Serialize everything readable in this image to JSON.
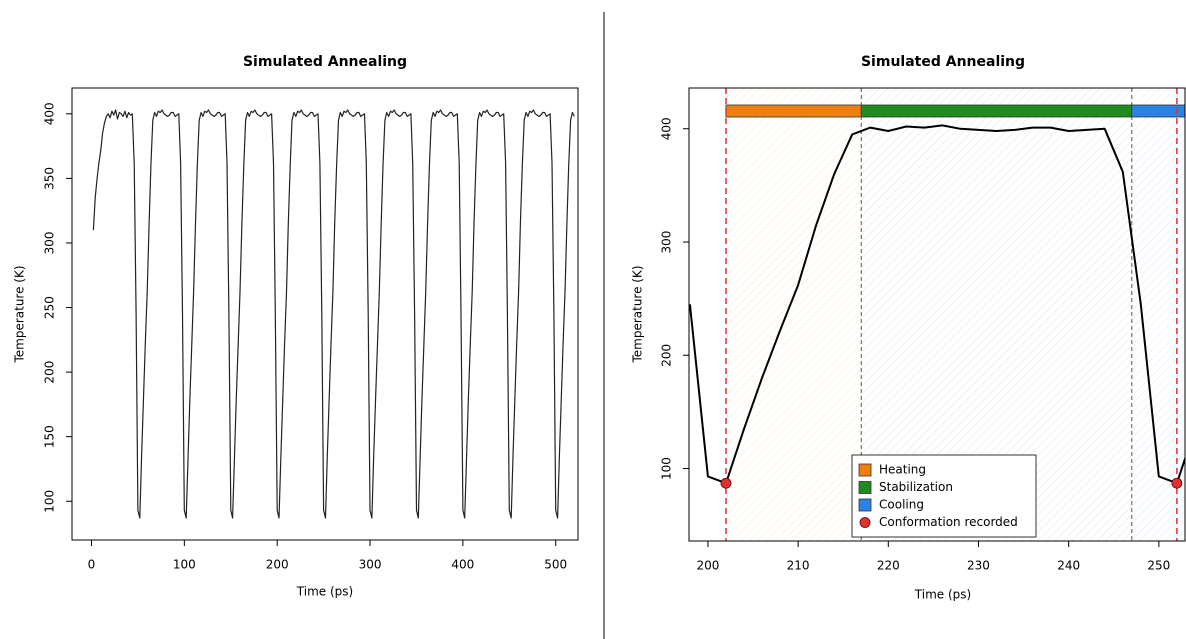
{
  "chart_data": [
    {
      "type": "line",
      "title": "Simulated Annealing",
      "xlabel": "Time (ps)",
      "ylabel": "Temperature (K)",
      "color": "#222222",
      "x": [
        2,
        4,
        6,
        8,
        10,
        12,
        14,
        16,
        18,
        20,
        22,
        24,
        26,
        28,
        30,
        32,
        34,
        36,
        38,
        40,
        42,
        44,
        46,
        48,
        50,
        52,
        54,
        56,
        58,
        60,
        62,
        64,
        66,
        68,
        70,
        72,
        74,
        76,
        78,
        80,
        82,
        84,
        86,
        88,
        90,
        92,
        94,
        96,
        98,
        100,
        102,
        104,
        106,
        108,
        110,
        112,
        114,
        116,
        118,
        120,
        122,
        124,
        126,
        128,
        130,
        132,
        134,
        136,
        138,
        140,
        142,
        144,
        146,
        148,
        150,
        152,
        154,
        156,
        158,
        160,
        162,
        164,
        166,
        168,
        170,
        172,
        174,
        176,
        178,
        180,
        182,
        184,
        186,
        188,
        190,
        192,
        194,
        196,
        198,
        200,
        202,
        204,
        206,
        208,
        210,
        212,
        214,
        216,
        218,
        220,
        222,
        224,
        226,
        228,
        230,
        232,
        234,
        236,
        238,
        240,
        242,
        244,
        246,
        248,
        250,
        252,
        254,
        256,
        258,
        260,
        262,
        264,
        266,
        268,
        270,
        272,
        274,
        276,
        278,
        280,
        282,
        284,
        286,
        288,
        290,
        292,
        294,
        296,
        298,
        300,
        302,
        304,
        306,
        308,
        310,
        312,
        314,
        316,
        318,
        320,
        322,
        324,
        326,
        328,
        330,
        332,
        334,
        336,
        338,
        340,
        342,
        344,
        346,
        348,
        350,
        352,
        354,
        356,
        358,
        360,
        362,
        364,
        366,
        368,
        370,
        372,
        374,
        376,
        378,
        380,
        382,
        384,
        386,
        388,
        390,
        392,
        394,
        396,
        398,
        400,
        402,
        404,
        406,
        408,
        410,
        412,
        414,
        416,
        418,
        420,
        422,
        424,
        426,
        428,
        430,
        432,
        434,
        436,
        438,
        440,
        442,
        444,
        446,
        448,
        450,
        452,
        454,
        456,
        458,
        460,
        462,
        464,
        466,
        468,
        470,
        472,
        474,
        476,
        478,
        480,
        482,
        484,
        486,
        488,
        490,
        492,
        494,
        496,
        498,
        500,
        502,
        504,
        506,
        508,
        510,
        512,
        514,
        516,
        518,
        520
      ],
      "values": [
        310,
        335,
        350,
        362,
        372,
        385,
        393,
        398,
        400,
        397,
        402,
        399,
        403,
        396,
        401,
        400,
        398,
        402,
        397,
        401,
        399,
        400,
        362,
        245,
        93,
        87,
        135,
        180,
        222,
        262,
        315,
        360,
        395,
        401,
        398,
        402,
        401,
        403,
        400,
        399,
        398,
        399,
        401,
        401,
        398,
        399,
        400,
        362,
        245,
        93,
        87,
        135,
        180,
        222,
        262,
        315,
        360,
        395,
        401,
        398,
        402,
        401,
        403,
        400,
        399,
        398,
        399,
        401,
        401,
        398,
        399,
        400,
        362,
        245,
        93,
        87,
        135,
        180,
        222,
        262,
        315,
        360,
        395,
        401,
        398,
        402,
        401,
        403,
        400,
        399,
        398,
        399,
        401,
        401,
        398,
        399,
        400,
        362,
        245,
        93,
        87,
        135,
        180,
        222,
        262,
        315,
        360,
        395,
        401,
        398,
        402,
        401,
        403,
        400,
        399,
        398,
        399,
        401,
        401,
        398,
        399,
        400,
        362,
        245,
        93,
        87,
        135,
        180,
        222,
        262,
        315,
        360,
        395,
        401,
        398,
        402,
        401,
        403,
        400,
        399,
        398,
        399,
        401,
        401,
        398,
        399,
        400,
        362,
        245,
        93,
        87,
        135,
        180,
        222,
        262,
        315,
        360,
        395,
        401,
        398,
        402,
        401,
        403,
        400,
        399,
        398,
        399,
        401,
        401,
        398,
        399,
        400,
        362,
        245,
        93,
        87,
        135,
        180,
        222,
        262,
        315,
        360,
        395,
        401,
        398,
        402,
        401,
        403,
        400,
        399,
        398,
        399,
        401,
        401,
        398,
        399,
        400,
        362,
        245,
        93,
        87,
        135,
        180,
        222,
        262,
        315,
        360,
        395,
        401,
        398,
        402,
        401,
        403,
        400,
        399,
        398,
        399,
        401,
        401,
        398,
        399,
        400,
        362,
        245,
        93,
        87,
        135,
        180,
        222,
        262,
        315,
        360,
        395,
        401,
        398,
        402,
        401,
        403,
        400,
        399,
        398,
        399,
        401,
        401,
        398,
        399,
        400,
        362,
        245,
        93,
        87,
        135,
        180,
        222,
        262,
        315,
        360,
        395,
        401,
        398
      ],
      "xlim": [
        -21,
        524
      ],
      "ylim": [
        70,
        420
      ],
      "xticks": [
        0,
        100,
        200,
        300,
        400,
        500
      ],
      "yticks": [
        100,
        150,
        200,
        250,
        300,
        350,
        400
      ]
    },
    {
      "type": "line",
      "title": "Simulated Annealing",
      "xlabel": "Time (ps)",
      "ylabel": "Temperature (K)",
      "color": "#000000",
      "x": [
        198,
        200,
        202,
        204,
        206,
        208,
        210,
        212,
        214,
        216,
        218,
        220,
        222,
        224,
        226,
        228,
        230,
        232,
        234,
        236,
        238,
        240,
        242,
        244,
        246,
        248,
        250,
        252,
        254
      ],
      "values": [
        245,
        93,
        87,
        135,
        180,
        222,
        262,
        315,
        360,
        395,
        401,
        398,
        402,
        401,
        403,
        400,
        399,
        398,
        399,
        401,
        401,
        398,
        399,
        400,
        362,
        245,
        93,
        87,
        135
      ],
      "xlim": [
        197.9,
        252.9
      ],
      "ylim": [
        36,
        436
      ],
      "xticks": [
        200,
        210,
        220,
        230,
        240,
        250
      ],
      "yticks": [
        100,
        200,
        300,
        400
      ],
      "phases": [
        {
          "name": "Heating",
          "start": 202,
          "end": 217,
          "color": "#f07f10"
        },
        {
          "name": "Stabilization",
          "start": 217,
          "end": 247,
          "color": "#1f8c1f"
        },
        {
          "name": "Cooling",
          "start": 247,
          "end": 253,
          "color": "#2a82e4"
        }
      ],
      "markers": {
        "name": "Conformation recorded",
        "x": [
          202,
          252
        ],
        "values": [
          87,
          87
        ],
        "color": "#e03030"
      }
    }
  ]
}
